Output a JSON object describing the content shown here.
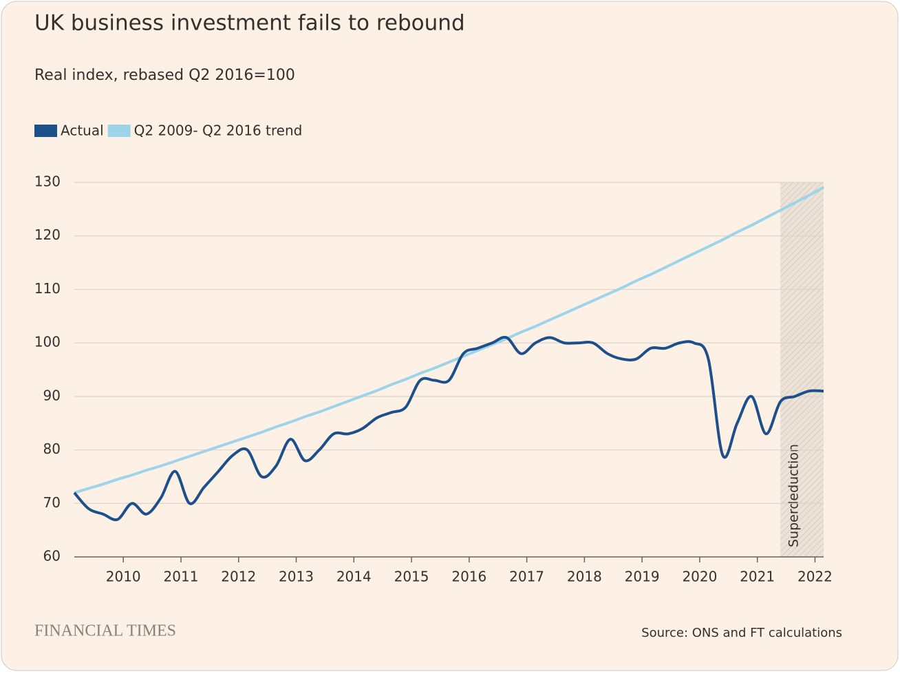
{
  "chart_data": {
    "type": "line",
    "title": "UK business investment fails to rebound",
    "subtitle": "Real index, rebased Q2 2016=100",
    "source": "Source: ONS and FT calculations",
    "brand": "FINANCIAL TIMES",
    "x": [
      2009.15,
      2009.4,
      2009.65,
      2009.9,
      2010.15,
      2010.4,
      2010.65,
      2010.9,
      2011.15,
      2011.4,
      2011.65,
      2011.9,
      2012.15,
      2012.4,
      2012.65,
      2012.9,
      2013.15,
      2013.4,
      2013.65,
      2013.9,
      2014.15,
      2014.4,
      2014.65,
      2014.9,
      2015.15,
      2015.4,
      2015.65,
      2015.9,
      2016.15,
      2016.4,
      2016.65,
      2016.9,
      2017.15,
      2017.4,
      2017.65,
      2017.9,
      2018.15,
      2018.4,
      2018.65,
      2018.9,
      2019.15,
      2019.4,
      2019.65,
      2019.9,
      2020.15,
      2020.4,
      2020.65,
      2020.9,
      2021.15,
      2021.4,
      2021.65,
      2021.9,
      2022.15
    ],
    "series": [
      {
        "name": "Actual",
        "color": "#1d4f8b",
        "values": [
          72,
          69,
          68,
          67,
          70,
          68,
          71,
          76,
          70,
          73,
          76,
          79,
          80,
          75,
          77,
          82,
          78,
          80,
          83,
          83,
          84,
          86,
          87,
          88,
          93,
          93,
          93,
          98,
          99,
          100,
          101,
          98,
          100,
          101,
          100,
          100,
          100,
          98,
          97,
          97,
          99,
          99,
          100,
          100,
          97,
          79,
          85,
          90,
          83,
          89,
          90,
          91,
          91
        ]
      },
      {
        "name": "Q2 2009- Q2 2016 trend",
        "color": "#9dd4ea",
        "values": [
          72.0,
          72.8,
          73.6,
          74.5,
          75.3,
          76.2,
          77.0,
          77.9,
          78.8,
          79.7,
          80.6,
          81.5,
          82.4,
          83.3,
          84.3,
          85.2,
          86.2,
          87.1,
          88.1,
          89.1,
          90.1,
          91.1,
          92.2,
          93.2,
          94.3,
          95.3,
          96.4,
          97.5,
          98.6,
          99.7,
          100.8,
          102.0,
          103.1,
          104.3,
          105.5,
          106.7,
          107.9,
          109.1,
          110.3,
          111.6,
          112.8,
          114.1,
          115.4,
          116.7,
          118.0,
          119.3,
          120.7,
          122.0,
          123.4,
          124.8,
          126.2,
          127.6,
          129.1
        ]
      }
    ],
    "xlim": [
      2009.15,
      2022.15
    ],
    "xticks": [
      2010,
      2011,
      2012,
      2013,
      2014,
      2015,
      2016,
      2017,
      2018,
      2019,
      2020,
      2021,
      2022
    ],
    "ylim": [
      60,
      130
    ],
    "yticks": [
      60,
      70,
      80,
      90,
      100,
      110,
      120,
      130
    ],
    "grid": true,
    "shaded_region": {
      "label": "Superdeduction",
      "x": [
        2021.4,
        2022.15
      ]
    }
  }
}
